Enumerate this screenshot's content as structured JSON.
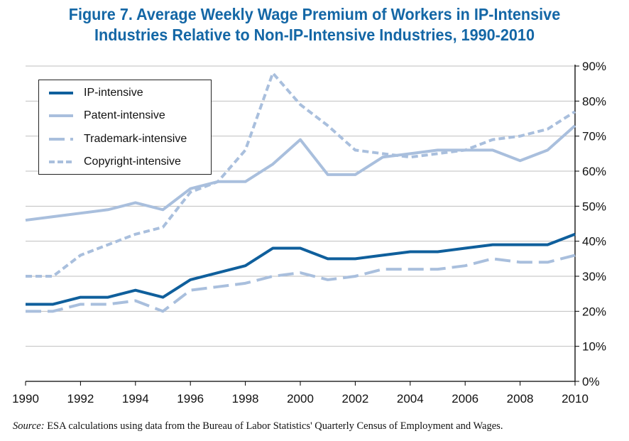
{
  "title_lines": [
    "Figure 7.  Average Weekly Wage Premium of Workers in IP-Intensive",
    "Industries Relative to Non-IP-Intensive Industries, 1990-2010"
  ],
  "source": {
    "label": "Source:",
    "text": " ESA calculations using data from the Bureau of Labor Statistics' Quarterly Census of Employment and Wages."
  },
  "colors": {
    "title": "#1467a6",
    "ip": "#0f5f9c",
    "light": "#a9bfdd",
    "grid": "#bfbfbf"
  },
  "chart_data": {
    "type": "line",
    "title": "Figure 7. Average Weekly Wage Premium of Workers in IP-Intensive Industries Relative to Non-IP-Intensive Industries, 1990-2010",
    "xlabel": "",
    "ylabel": "",
    "x": [
      1990,
      1991,
      1992,
      1993,
      1994,
      1995,
      1996,
      1997,
      1998,
      1999,
      2000,
      2001,
      2002,
      2003,
      2004,
      2005,
      2006,
      2007,
      2008,
      2009,
      2010
    ],
    "x_tick_labels": [
      "1990",
      "1992",
      "1994",
      "1996",
      "1998",
      "2000",
      "2002",
      "2004",
      "2006",
      "2008",
      "2010"
    ],
    "y_tick_labels": [
      "0%",
      "10%",
      "20%",
      "30%",
      "40%",
      "50%",
      "60%",
      "70%",
      "80%",
      "90%"
    ],
    "ylim": [
      0,
      90
    ],
    "xlim": [
      1990,
      2010
    ],
    "y_axis_side": "right",
    "grid": true,
    "legend_position": "top-left",
    "series": [
      {
        "name": "IP-intensive",
        "style": "solid",
        "color_key": "ip",
        "values": [
          22,
          22,
          24,
          24,
          26,
          24,
          29,
          31,
          33,
          38,
          38,
          35,
          35,
          36,
          37,
          37,
          38,
          39,
          39,
          39,
          42
        ]
      },
      {
        "name": "Patent-intensive",
        "style": "solid",
        "color_key": "light",
        "values": [
          46,
          47,
          48,
          49,
          51,
          49,
          55,
          57,
          57,
          62,
          69,
          59,
          59,
          64,
          65,
          66,
          66,
          66,
          63,
          66,
          73
        ]
      },
      {
        "name": "Trademark-intensive",
        "style": "longdash",
        "color_key": "light",
        "values": [
          20,
          20,
          22,
          22,
          23,
          20,
          26,
          27,
          28,
          30,
          31,
          29,
          30,
          32,
          32,
          32,
          33,
          35,
          34,
          34,
          36
        ]
      },
      {
        "name": "Copyright-intensive",
        "style": "shortdash",
        "color_key": "light",
        "values": [
          30,
          30,
          36,
          39,
          42,
          44,
          54,
          57,
          66,
          88,
          79,
          73,
          66,
          65,
          64,
          65,
          66,
          69,
          70,
          72,
          77
        ]
      }
    ]
  }
}
